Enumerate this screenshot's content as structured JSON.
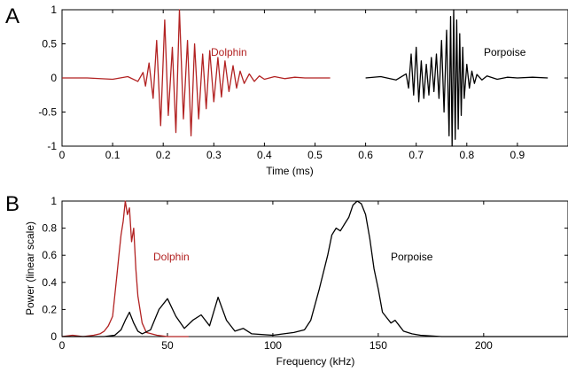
{
  "chart_data": [
    {
      "panel": "A",
      "type": "line",
      "xlabel": "Time (ms)",
      "ylabel": "",
      "xlim": [
        0,
        1.0
      ],
      "ylim": [
        -1,
        1
      ],
      "xticks": [
        "0",
        "0.1",
        "0.2",
        "0.3",
        "0.4",
        "0.5",
        "0.6",
        "0.7",
        "0.8",
        "0.9"
      ],
      "xtick_values": [
        0,
        0.1,
        0.2,
        0.3,
        0.4,
        0.5,
        0.6,
        0.7,
        0.8,
        0.9
      ],
      "yticks": [
        "-1",
        "-0.5",
        "0",
        "0.5",
        "1"
      ],
      "ytick_values": [
        -1,
        -0.5,
        0,
        0.5,
        1
      ],
      "grid": false,
      "series": [
        {
          "name": "Dolphin",
          "color": "#b22222",
          "x": [
            0.0,
            0.05,
            0.1,
            0.13,
            0.15,
            0.16,
            0.165,
            0.172,
            0.18,
            0.187,
            0.195,
            0.203,
            0.21,
            0.218,
            0.225,
            0.232,
            0.24,
            0.248,
            0.255,
            0.262,
            0.27,
            0.278,
            0.285,
            0.292,
            0.3,
            0.308,
            0.315,
            0.322,
            0.33,
            0.338,
            0.345,
            0.352,
            0.36,
            0.37,
            0.38,
            0.39,
            0.4,
            0.42,
            0.44,
            0.46,
            0.48,
            0.5,
            0.53
          ],
          "y": [
            0.0,
            0.0,
            -0.02,
            0.02,
            -0.05,
            0.08,
            -0.12,
            0.22,
            -0.3,
            0.55,
            -0.7,
            0.85,
            -0.55,
            0.45,
            -0.8,
            1.0,
            -0.6,
            0.55,
            -0.85,
            0.5,
            -0.6,
            0.35,
            -0.45,
            0.4,
            -0.35,
            0.3,
            -0.28,
            0.25,
            -0.2,
            0.18,
            -0.15,
            0.1,
            -0.08,
            0.06,
            -0.05,
            0.03,
            -0.02,
            0.02,
            -0.01,
            0.01,
            0.0,
            0.0,
            0.0
          ]
        },
        {
          "name": "Porpoise",
          "color": "#000000",
          "x": [
            0.6,
            0.63,
            0.66,
            0.68,
            0.685,
            0.69,
            0.695,
            0.7,
            0.705,
            0.71,
            0.715,
            0.72,
            0.725,
            0.73,
            0.735,
            0.74,
            0.745,
            0.75,
            0.755,
            0.76,
            0.765,
            0.768,
            0.771,
            0.774,
            0.777,
            0.78,
            0.783,
            0.786,
            0.789,
            0.792,
            0.795,
            0.8,
            0.805,
            0.81,
            0.815,
            0.82,
            0.83,
            0.84,
            0.86,
            0.88,
            0.9,
            0.93,
            0.96
          ],
          "y": [
            0.0,
            0.02,
            -0.03,
            0.06,
            -0.15,
            0.35,
            -0.25,
            0.45,
            -0.35,
            0.25,
            -0.3,
            0.2,
            -0.25,
            0.3,
            -0.2,
            0.35,
            -0.3,
            0.55,
            -0.5,
            0.7,
            -0.85,
            0.9,
            -1.0,
            1.0,
            -0.9,
            0.85,
            -0.75,
            0.65,
            -0.55,
            0.45,
            -0.3,
            0.2,
            -0.15,
            0.1,
            -0.08,
            0.05,
            -0.03,
            0.03,
            -0.02,
            0.01,
            0.0,
            0.01,
            0.0
          ]
        }
      ],
      "annotations": [
        "Dolphin",
        "Porpoise"
      ]
    },
    {
      "panel": "B",
      "type": "line",
      "xlabel": "Frequency (kHz)",
      "ylabel": "Power (linear scale)",
      "xlim": [
        0,
        240
      ],
      "ylim": [
        0,
        1
      ],
      "xticks": [
        "0",
        "50",
        "100",
        "150",
        "200"
      ],
      "xtick_values": [
        0,
        50,
        100,
        150,
        200
      ],
      "yticks": [
        "0",
        "0.2",
        "0.4",
        "0.6",
        "0.8",
        "1"
      ],
      "ytick_values": [
        0,
        0.2,
        0.4,
        0.6,
        0.8,
        1
      ],
      "grid": false,
      "series": [
        {
          "name": "Dolphin",
          "color": "#b22222",
          "x": [
            0,
            5,
            10,
            15,
            18,
            20,
            22,
            24,
            25,
            26,
            27,
            28,
            29,
            30,
            31,
            32,
            33,
            34,
            35,
            36,
            38,
            40,
            45,
            50,
            60
          ],
          "y": [
            0.0,
            0.01,
            0.0,
            0.01,
            0.02,
            0.04,
            0.08,
            0.15,
            0.3,
            0.45,
            0.6,
            0.75,
            0.85,
            1.0,
            0.9,
            0.95,
            0.7,
            0.8,
            0.5,
            0.3,
            0.1,
            0.03,
            0.01,
            0.0,
            0.0
          ]
        },
        {
          "name": "Porpoise",
          "color": "#000000",
          "x": [
            0,
            10,
            20,
            25,
            28,
            30,
            32,
            34,
            36,
            38,
            42,
            46,
            50,
            54,
            58,
            62,
            66,
            70,
            74,
            78,
            82,
            86,
            90,
            100,
            110,
            115,
            118,
            122,
            126,
            128,
            130,
            132,
            134,
            136,
            138,
            140,
            142,
            144,
            146,
            148,
            150,
            152,
            154,
            156,
            158,
            160,
            162,
            166,
            170,
            180,
            200,
            240
          ],
          "y": [
            0.0,
            0.0,
            0.0,
            0.01,
            0.05,
            0.12,
            0.18,
            0.1,
            0.04,
            0.02,
            0.05,
            0.2,
            0.28,
            0.15,
            0.06,
            0.12,
            0.16,
            0.08,
            0.29,
            0.12,
            0.04,
            0.06,
            0.02,
            0.01,
            0.03,
            0.05,
            0.12,
            0.35,
            0.6,
            0.75,
            0.8,
            0.78,
            0.83,
            0.88,
            0.97,
            1.0,
            0.98,
            0.9,
            0.72,
            0.5,
            0.35,
            0.18,
            0.14,
            0.1,
            0.12,
            0.08,
            0.04,
            0.02,
            0.01,
            0.0,
            0.0,
            0.0
          ]
        }
      ],
      "annotations": [
        "Dolphin",
        "Porpoise"
      ]
    }
  ],
  "text_color": "#000000",
  "accent_color": "#b22222"
}
